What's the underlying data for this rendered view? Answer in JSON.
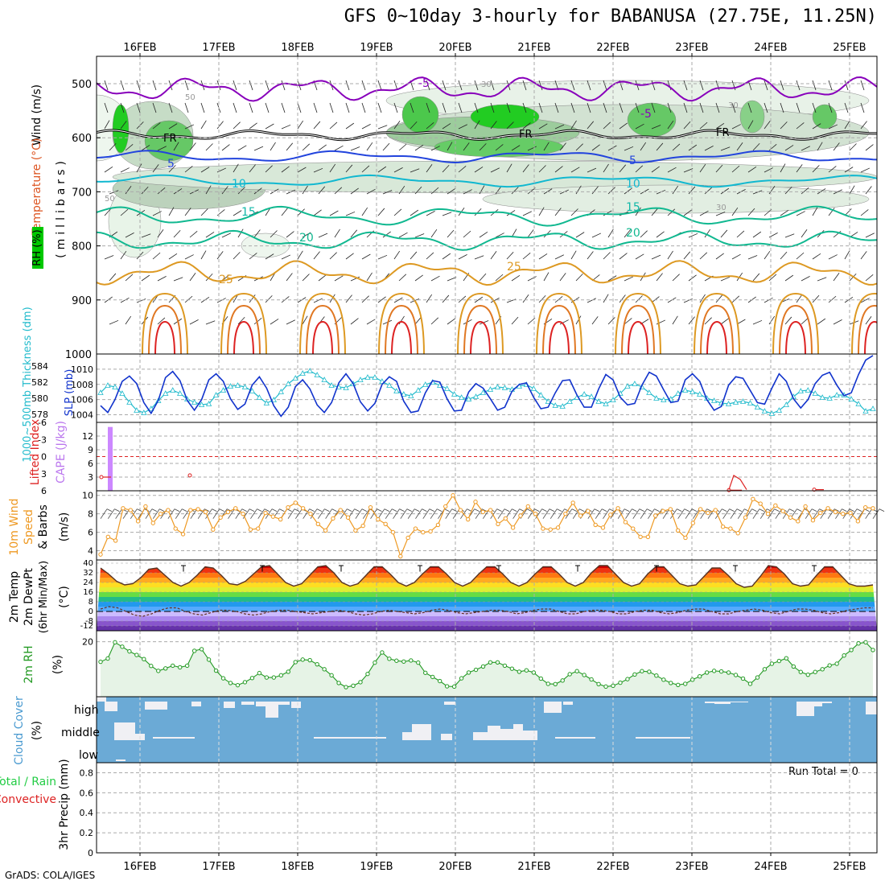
{
  "title": "GFS 0~10day 3-hourly for BABANUSA (27.75E, 11.25N)",
  "footer": "GrADS: COLA/IGES",
  "run_total": "Run Total = 0",
  "colors": {
    "rh_green": "#00c800",
    "temp_purple": "#8800bb",
    "temp_blue": "#2244dd",
    "temp_cyan": "#11b8d0",
    "temp_teal": "#10b890",
    "temp_orange": "#dd9922",
    "temp_red": "#dd2222",
    "slp": "#1133cc",
    "thickness": "#22bbcc",
    "cape": "#cc88ff",
    "wind10m": "#ee9922",
    "rh2m": "#229922",
    "cloud_bg": "#6baad6",
    "cloud_fill": "#f0f0f4"
  },
  "chart_data": [
    {
      "type": "heatmap",
      "panel": "upper-air cross-section",
      "ylabel": "(millibars)",
      "series_labels": [
        "Wind (m/s)",
        "Temperature (°C)",
        "RH (%)"
      ],
      "y_ticks": [
        "500",
        "600",
        "700",
        "800",
        "900",
        "1000"
      ],
      "contour_labels": [
        "-5",
        "FR",
        "5",
        "10",
        "15",
        "20",
        "25",
        "30",
        "50"
      ],
      "temperature_contours_mb": [
        {
          "label": "-5",
          "level": 510
        },
        {
          "label": "FR",
          "level": 595
        },
        {
          "label": "5",
          "level": 635
        },
        {
          "label": "10",
          "level": 680
        },
        {
          "label": "15",
          "level": 745
        },
        {
          "label": "20",
          "level": 790
        },
        {
          "label": "25",
          "level": 850
        }
      ]
    },
    {
      "type": "line",
      "panel": "SLP and 1000-500mb thickness",
      "ylabel_left": "1000~500mb Thickness (dm)",
      "ylabel_right": "SLP (mb)",
      "left_ticks": [
        "584",
        "582",
        "580",
        "578"
      ],
      "right_ticks": [
        "1010",
        "1008",
        "1006",
        "1004"
      ],
      "ylim_slp": [
        1003,
        1012
      ],
      "ylim_thickness": [
        577,
        585.5
      ],
      "series": [
        {
          "name": "SLP (mb)",
          "values": [
            1005.2,
            1004.3,
            1006.0,
            1008.4,
            1009.1,
            1008.1,
            1005.6,
            1004.2,
            1005.9,
            1008.9,
            1009.7,
            1008.5,
            1005.9,
            1004.6,
            1006.0,
            1008.6,
            1009.4,
            1008.4,
            1006.1,
            1004.7,
            1005.4,
            1007.9,
            1009.0,
            1007.5,
            1005.2,
            1003.8,
            1005.0,
            1007.7,
            1008.6,
            1007.4,
            1005.3,
            1004.3,
            1005.6,
            1008.2,
            1009.4,
            1008.1,
            1005.7,
            1004.5,
            1005.5,
            1008.0,
            1009.0,
            1008.4,
            1005.8,
            1004.3,
            1004.5,
            1006.9,
            1008.5,
            1008.3,
            1006.1,
            1004.5,
            1004.6,
            1007.0,
            1008.1,
            1007.5,
            1006.1,
            1004.6,
            1005.0,
            1007.1,
            1008.0,
            1008.2,
            1006.3,
            1004.8,
            1005.0,
            1006.9,
            1008.5,
            1008.6,
            1006.6,
            1005.0,
            1005.0,
            1007.4,
            1009.3,
            1008.6,
            1006.3,
            1005.3,
            1005.5,
            1007.9,
            1009.6,
            1009.1,
            1007.3,
            1005.6,
            1005.8,
            1008.6,
            1009.4,
            1008.4,
            1006.0,
            1004.6,
            1005.1,
            1007.9,
            1009.0,
            1008.8,
            1007.2,
            1005.6,
            1005.4,
            1007.5,
            1009.4,
            1008.4,
            1006.1,
            1004.9,
            1006.0,
            1008.1,
            1009.2,
            1009.6,
            1007.9,
            1006.5,
            1006.9,
            1009.3,
            1011.2,
            1011.8
          ]
        },
        {
          "name": "1000~500mb Thickness (dm)",
          "values": [
            580.7,
            581.6,
            581.4,
            580.6,
            579.5,
            578.5,
            578.2,
            578.7,
            579.7,
            580.6,
            581.0,
            580.6,
            579.9,
            579.5,
            579.2,
            579.3,
            580.4,
            581.0,
            581.5,
            581.6,
            581.4,
            580.9,
            580.1,
            579.4,
            579.8,
            580.8,
            581.8,
            582.5,
            583.1,
            583.4,
            582.9,
            582.3,
            581.6,
            581.4,
            581.3,
            581.8,
            582.3,
            582.6,
            582.6,
            582.1,
            581.6,
            580.9,
            580.5,
            580.3,
            581.0,
            581.7,
            582.0,
            581.6,
            581.2,
            580.5,
            580.1,
            579.9,
            580.2,
            580.7,
            581.1,
            581.4,
            581.3,
            581.1,
            581.5,
            581.7,
            581.2,
            580.4,
            579.6,
            579.1,
            579.0,
            579.6,
            580.1,
            580.5,
            580.2,
            579.6,
            579.3,
            579.8,
            580.6,
            581.5,
            581.8,
            581.4,
            580.7,
            580.0,
            579.8,
            579.9,
            580.6,
            581.0,
            580.8,
            580.5,
            580.0,
            579.7,
            579.4,
            579.3,
            579.5,
            579.6,
            579.4,
            578.9,
            578.4,
            578.1,
            578.5,
            579.2,
            580.2,
            580.9,
            581.0,
            580.6,
            580.1,
            580.0,
            580.4,
            580.4,
            579.9,
            579.3,
            578.4,
            578.7
          ]
        }
      ]
    },
    {
      "type": "bar",
      "panel": "CAPE and Lifted Index",
      "ylabel_left": "Lifted Index",
      "ylabel_right": "CAPE (J/kg)",
      "left_ticks": [
        "-6",
        "-3",
        "0",
        "3",
        "6"
      ],
      "right_ticks": [
        "12",
        "9",
        "6",
        "3"
      ],
      "series": [
        {
          "name": "CAPE (J/kg)",
          "values": [
            0,
            14,
            0,
            0,
            0,
            0,
            0,
            0
          ]
        },
        {
          "name": "Lifted Index",
          "values": [
            3.6,
            3.3,
            5.9,
            5.8
          ]
        }
      ]
    },
    {
      "type": "line",
      "panel": "10m wind",
      "ylabel": "10m Wind Speed & Barbs (m/s)",
      "y_ticks": [
        "10",
        "8",
        "6",
        "4"
      ],
      "ylim": [
        3,
        10.5
      ],
      "series": [
        {
          "name": "10m Wind Speed",
          "values": [
            3.6,
            5.5,
            5.1,
            8.6,
            8.4,
            7.2,
            8.8,
            7.0,
            8.0,
            8.4,
            6.4,
            5.8,
            8.4,
            8.5,
            8.2,
            6.3,
            7.6,
            8.2,
            8.6,
            8.0,
            6.3,
            6.4,
            8.1,
            7.7,
            7.4,
            8.7,
            9.2,
            8.6,
            8.0,
            6.9,
            6.2,
            7.5,
            8.4,
            7.6,
            6.2,
            6.7,
            8.7,
            7.4,
            6.9,
            6.0,
            3.4,
            5.4,
            6.4,
            6.0,
            6.1,
            6.8,
            8.8,
            10.0,
            8.4,
            7.4,
            9.3,
            8.2,
            8.4,
            6.9,
            7.5,
            6.5,
            7.8,
            8.8,
            8.0,
            6.4,
            6.3,
            6.5,
            8.0,
            9.2,
            7.8,
            8.3,
            6.8,
            6.5,
            7.9,
            8.6,
            7.1,
            6.4,
            5.5,
            5.5,
            7.8,
            8.3,
            8.5,
            6.2,
            5.4,
            7.0,
            8.5,
            8.1,
            8.4,
            6.6,
            6.4,
            5.9,
            7.6,
            9.6,
            9.1,
            8.0,
            8.9,
            8.3,
            7.6,
            7.2,
            8.8,
            7.3,
            8.1,
            8.6,
            8.2,
            8.0,
            8.1,
            7.2,
            8.7,
            8.6
          ]
        }
      ]
    },
    {
      "type": "area",
      "panel": "2m temperature",
      "ylabel": "2m Temp 2m DewPt (6hr Min/Max) (°C)",
      "y_ticks": [
        "40",
        "32",
        "24",
        "16",
        "8",
        "0",
        "-8",
        "-12"
      ],
      "series": [
        {
          "name": "2m Temp",
          "values": [
            36,
            31,
            25,
            22,
            23,
            28,
            35,
            36,
            30,
            24,
            21,
            24,
            30,
            37,
            36,
            30,
            23,
            22,
            25,
            31,
            37,
            38,
            31,
            24,
            21,
            23,
            30,
            37,
            38,
            32,
            24,
            21,
            23,
            30,
            37,
            37,
            31,
            24,
            21,
            24,
            31,
            37,
            37,
            31,
            24,
            21,
            24,
            31,
            37,
            37,
            31,
            24,
            21,
            24,
            31,
            37,
            37,
            31,
            24,
            21,
            24,
            32,
            38,
            38,
            31,
            24,
            21,
            23,
            31,
            37,
            37,
            30,
            23,
            21,
            22,
            29,
            36,
            36,
            30,
            23,
            20,
            21,
            29,
            38,
            37,
            31,
            23,
            21,
            22,
            30,
            37,
            37,
            30,
            23,
            21,
            21,
            22
          ]
        },
        {
          "name": "2m DewPt",
          "values": [
            2,
            4,
            3,
            0,
            -3,
            -4,
            -2,
            1,
            3,
            3,
            0,
            -2,
            -3,
            -1,
            1,
            1,
            0,
            -2,
            -3,
            -2,
            0,
            1,
            1,
            0,
            -1,
            -2,
            -1,
            0,
            1,
            0,
            -2,
            -3,
            -2,
            0,
            1,
            0,
            -1,
            -2,
            -1,
            1,
            2,
            1,
            -1,
            -2,
            -1,
            0,
            1,
            1,
            0,
            -2,
            -1,
            1,
            2,
            2,
            0,
            -2,
            -2,
            0,
            1,
            1,
            0,
            -2,
            -2,
            0,
            1,
            1,
            -1,
            -2,
            -1,
            1,
            2,
            2,
            0,
            -2,
            -2,
            0,
            1,
            2,
            1,
            -1,
            -2,
            0,
            2,
            2,
            1,
            -1,
            -2,
            -1,
            1,
            2,
            3,
            3
          ]
        }
      ]
    },
    {
      "type": "line",
      "panel": "2m relative humidity",
      "ylabel": "2m RH (%)",
      "y_ticks": [
        "20"
      ],
      "ylim": [
        0,
        24
      ],
      "series": [
        {
          "name": "2m RH",
          "values": [
            12.7,
            13.9,
            19.8,
            18.2,
            16.5,
            15.2,
            13.7,
            11.2,
            9.4,
            10.3,
            11.3,
            10.7,
            11.3,
            16.7,
            17.3,
            13.5,
            9.5,
            6.7,
            5.0,
            4.2,
            5.3,
            6.8,
            8.6,
            7.0,
            7.0,
            7.8,
            9.1,
            12.6,
            13.5,
            13.3,
            11.8,
            10.0,
            7.8,
            5.0,
            3.5,
            4.0,
            5.3,
            8.3,
            12.4,
            16.1,
            13.8,
            13.1,
            12.8,
            13.2,
            12.4,
            8.7,
            7.2,
            5.7,
            3.8,
            3.7,
            6.7,
            8.8,
            9.8,
            11.0,
            12.5,
            12.5,
            11.3,
            10.2,
            9.1,
            9.6,
            8.8,
            6.6,
            4.7,
            4.6,
            5.9,
            8.2,
            9.3,
            7.9,
            6.3,
            4.6,
            3.7,
            4.0,
            5.1,
            6.4,
            8.1,
            9.3,
            9.1,
            7.7,
            6.2,
            5.0,
            4.3,
            4.7,
            6.2,
            7.4,
            8.8,
            9.4,
            9.2,
            8.8,
            7.9,
            6.6,
            4.7,
            7.0,
            10.0,
            12.0,
            13.0,
            14.0,
            11.0,
            9.0,
            8.0,
            9.0,
            10.0,
            11.4,
            12.0,
            15.0,
            17.0,
            19.4,
            19.8,
            17.0
          ]
        }
      ]
    },
    {
      "type": "heatmap",
      "panel": "cloud cover",
      "ylabel": "Cloud Cover (%)",
      "row_labels": [
        "high",
        "middle",
        "low"
      ]
    },
    {
      "type": "bar",
      "panel": "3hr precipitation",
      "ylabel": "3hr Precip (mm)",
      "series_labels": [
        "Total / Rain",
        "Convective"
      ],
      "y_ticks": [
        "0.8",
        "0.6",
        "0.4",
        "0.2",
        "0"
      ],
      "ylim": [
        0,
        0.9
      ],
      "values": []
    }
  ],
  "date_labels": [
    "16FEB",
    "17FEB",
    "18FEB",
    "19FEB",
    "20FEB",
    "21FEB",
    "22FEB",
    "23FEB",
    "24FEB",
    "25FEB"
  ],
  "cross_section_labels": {
    "m5": "-5",
    "fr": "FR",
    "t5": "5",
    "t10": "10",
    "t15": "15",
    "t20": "20",
    "t25": "25",
    "c30": "30",
    "c50": "50"
  },
  "panel_labels": {
    "p1_wind": "Wind (m/s)",
    "p1_temp": "Temperature (°C)",
    "p1_rh": "RH (%)",
    "p1_mb": "(millibars)",
    "p2_thick": "1000~500mb Thickness (dm)",
    "p2_slp": "SLP (mb)",
    "p3_li": "Lifted Index",
    "p3_cape": "CAPE (J/kg)",
    "p4_a": "10m Wind",
    "p4_b": "Speed",
    "p4_c": "& Barbs",
    "p4_d": "(m/s)",
    "p5_a": "2m Temp",
    "p5_b": "2m DewPt",
    "p5_c": "(6hr Min/Max)",
    "p5_d": "(°C)",
    "p6_a": "2m RH",
    "p6_b": "(%)",
    "p7_a": "Cloud Cover",
    "p7_b": "(%)",
    "p8_a": "3hr Precip (mm)",
    "p8_b": "Total / Rain",
    "p8_c": "Convective"
  }
}
